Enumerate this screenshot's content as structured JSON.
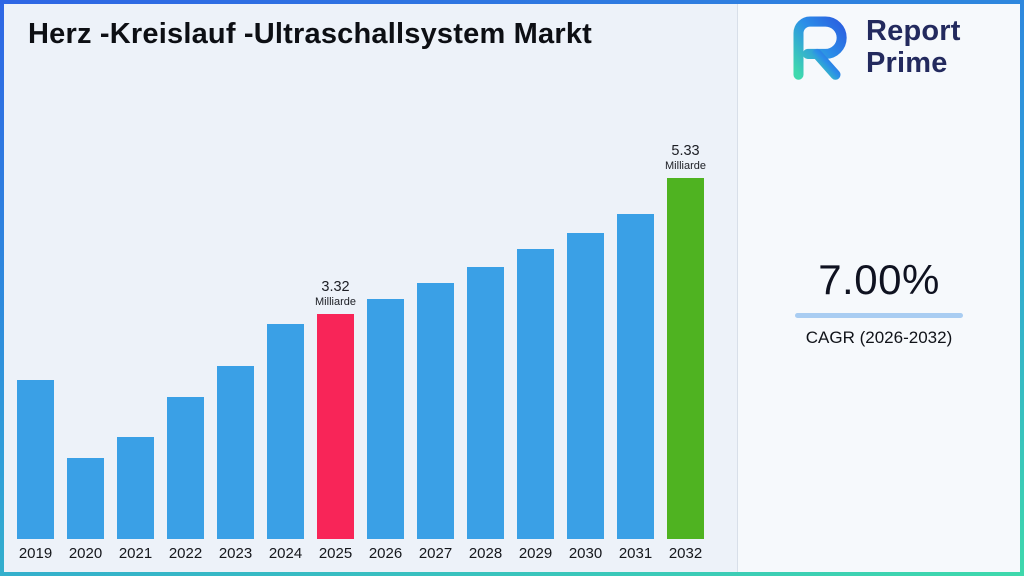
{
  "title": "Herz -Kreislauf -Ultraschallsystem Markt",
  "logo": {
    "line1": "Report",
    "line2": "Prime"
  },
  "cagr": {
    "value": "7.00%",
    "label": "CAGR (2026-2032)"
  },
  "chart_data": {
    "type": "bar",
    "title": "Herz -Kreislauf -Ultraschallsystem Markt",
    "xlabel": "",
    "ylabel": "",
    "unit": "Milliarde",
    "ylim": [
      0,
      5.8
    ],
    "grid": false,
    "legend": false,
    "categories": [
      "2019",
      "2020",
      "2021",
      "2022",
      "2023",
      "2024",
      "2025",
      "2026",
      "2027",
      "2028",
      "2029",
      "2030",
      "2031",
      "2032"
    ],
    "values": [
      2.35,
      1.2,
      1.5,
      2.1,
      2.55,
      3.18,
      3.32,
      3.55,
      3.78,
      4.02,
      4.28,
      4.52,
      4.8,
      5.33
    ],
    "colors": {
      "default": "#3AA0E6",
      "2025": "#F82558",
      "2032": "#4FB321"
    },
    "annotations": [
      {
        "category": "2025",
        "value_label": "3.32",
        "unit_label": "Milliarde"
      },
      {
        "category": "2032",
        "value_label": "5.33",
        "unit_label": "Milliarde"
      }
    ]
  }
}
